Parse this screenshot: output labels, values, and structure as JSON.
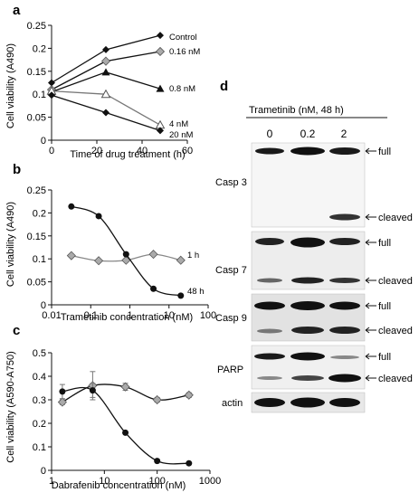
{
  "panels": {
    "a": "a",
    "b": "b",
    "c": "c",
    "d": "d"
  },
  "chart_data": [
    {
      "panel": "a",
      "type": "line",
      "xlabel": "Time of drug treatment (h)",
      "ylabel": "Cell viability (A490)",
      "xlim": [
        0,
        60
      ],
      "ylim": [
        0,
        0.25
      ],
      "xticks": [
        "0",
        "20",
        "40",
        "60"
      ],
      "yticks": [
        "0",
        "0.05",
        "0.1",
        "0.15",
        "0.2",
        "0.25"
      ],
      "x": [
        0,
        24,
        48
      ],
      "series": [
        {
          "name": "Control",
          "values": [
            0.125,
            0.197,
            0.228
          ],
          "marker": "filled-diamond",
          "color": "#111111"
        },
        {
          "name": "0.16 nM",
          "values": [
            0.11,
            0.172,
            0.193
          ],
          "marker": "gray-diamond",
          "color": "#111111"
        },
        {
          "name": "0.8 nM",
          "values": [
            0.105,
            0.148,
            0.112
          ],
          "marker": "triangle",
          "color": "#111111"
        },
        {
          "name": "4 nM",
          "values": [
            0.107,
            0.1,
            0.033
          ],
          "marker": "open-triangle",
          "color": "#777777"
        },
        {
          "name": "20 nM",
          "values": [
            0.098,
            0.06,
            0.021
          ],
          "marker": "filled-diamond",
          "color": "#111111"
        }
      ]
    },
    {
      "panel": "b",
      "type": "line",
      "xscale": "log",
      "xlabel": "Trametinib concentration (nM)",
      "ylabel": "Cell viability (A490)",
      "xlim": [
        0.01,
        100
      ],
      "ylim": [
        0,
        0.25
      ],
      "xticks": [
        "0.01",
        "0.1",
        "1",
        "10",
        "100"
      ],
      "yticks": [
        "0",
        "0.05",
        "0.1",
        "0.15",
        "0.2",
        "0.25"
      ],
      "x": [
        0.032,
        0.16,
        0.8,
        4,
        20
      ],
      "series": [
        {
          "name": "1 h",
          "values": [
            0.107,
            0.096,
            0.097,
            0.11,
            0.097
          ],
          "marker": "gray-diamond",
          "color": "#888888"
        },
        {
          "name": "48 h",
          "values": [
            0.214,
            0.193,
            0.11,
            0.035,
            0.02
          ],
          "marker": "filled-circle",
          "color": "#111111"
        }
      ]
    },
    {
      "panel": "c",
      "type": "line",
      "xscale": "log",
      "xlabel": "Dabrafenib concentration (nM)",
      "ylabel": "Cell viability (A590-A750)",
      "xlim": [
        1,
        1000
      ],
      "ylim": [
        0,
        0.5
      ],
      "xticks": [
        "1",
        "10",
        "100",
        "1000"
      ],
      "yticks": [
        "0",
        "0.1",
        "0.2",
        "0.3",
        "0.4",
        "0.5"
      ],
      "x": [
        1.6,
        6,
        25,
        100,
        400
      ],
      "series": [
        {
          "values": [
            0.29,
            0.36,
            0.355,
            0.3,
            0.32
          ],
          "errors": [
            0.01,
            0.06,
            0.015,
            0.01,
            0.01
          ],
          "marker": "gray-diamond",
          "color": "#111111"
        },
        {
          "values": [
            0.335,
            0.34,
            0.16,
            0.04,
            0.03
          ],
          "errors": [
            0.03,
            0.03,
            0,
            0,
            0
          ],
          "marker": "filled-circle",
          "color": "#111111"
        }
      ]
    }
  ],
  "western": {
    "title": "Trametinib (nM, 48 h)",
    "lanes": [
      "0",
      "0.2",
      "2"
    ],
    "blots": [
      {
        "label": "Casp 3",
        "bands": [
          "full",
          "cleaved"
        ]
      },
      {
        "label": "Casp 7",
        "bands": [
          "full",
          "cleaved"
        ]
      },
      {
        "label": "Casp 9",
        "bands": [
          "full",
          "cleaved"
        ]
      },
      {
        "label": "PARP",
        "bands": [
          "full",
          "cleaved"
        ]
      },
      {
        "label": "actin",
        "bands": []
      }
    ]
  }
}
